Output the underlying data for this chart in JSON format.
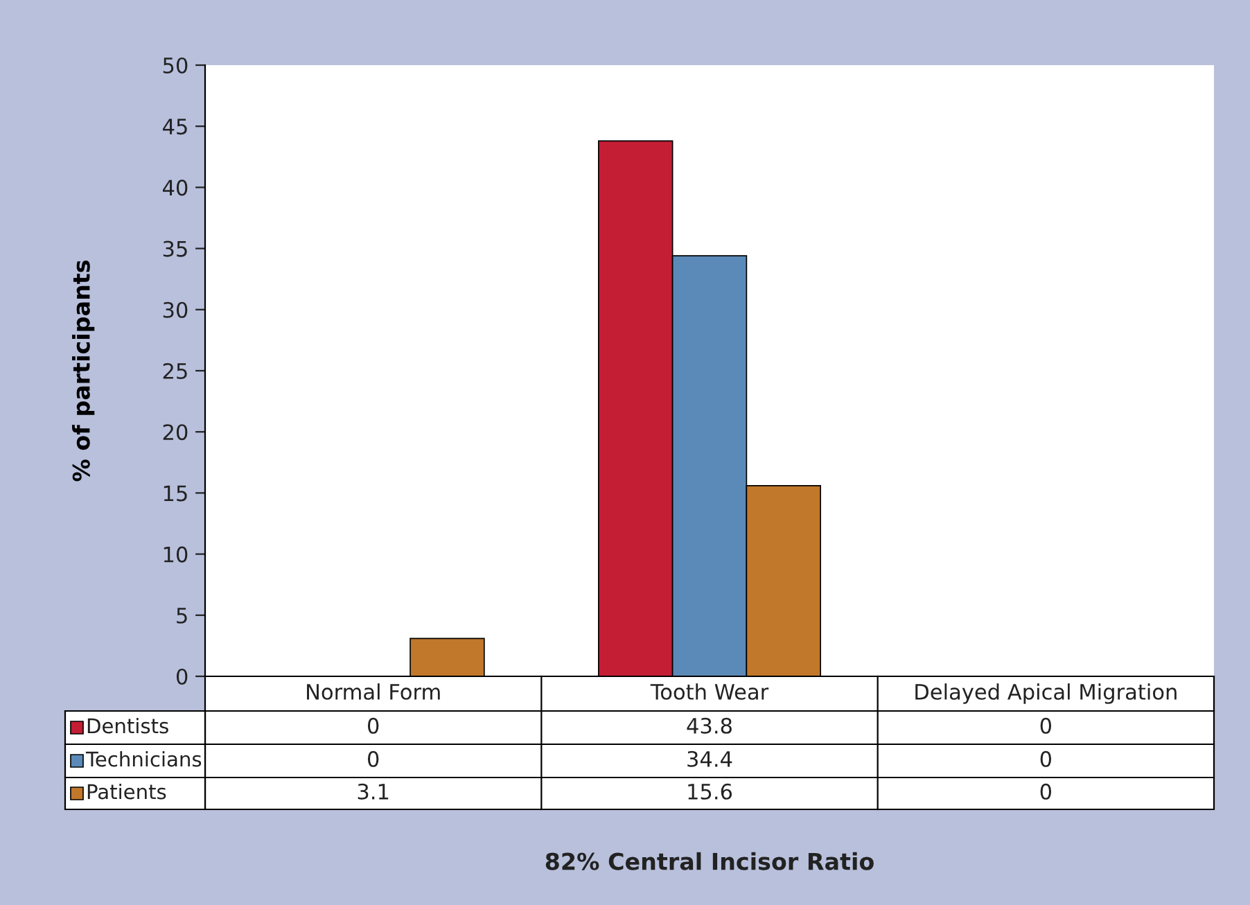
{
  "chart_data": {
    "type": "bar",
    "annotations": [
      "82% Central Incisor Ratio"
    ],
    "ylabel": "% of participants",
    "categories": [
      "Normal Form",
      "Tooth Wear",
      "Delayed Apical Migration"
    ],
    "series": [
      {
        "name": "Dentists",
        "color": "#c41e35",
        "values": [
          0,
          43.8,
          0
        ]
      },
      {
        "name": "Technicians",
        "color": "#5b8ab8",
        "values": [
          0,
          34.4,
          0
        ]
      },
      {
        "name": "Patients",
        "color": "#c1782a",
        "values": [
          3.1,
          15.6,
          0
        ]
      }
    ],
    "ylim": [
      0,
      50
    ],
    "yticks": [
      0,
      5,
      10,
      15,
      20,
      25,
      30,
      35,
      40,
      45,
      50
    ],
    "grid": false,
    "legend": "bottom",
    "data_labels": true
  }
}
